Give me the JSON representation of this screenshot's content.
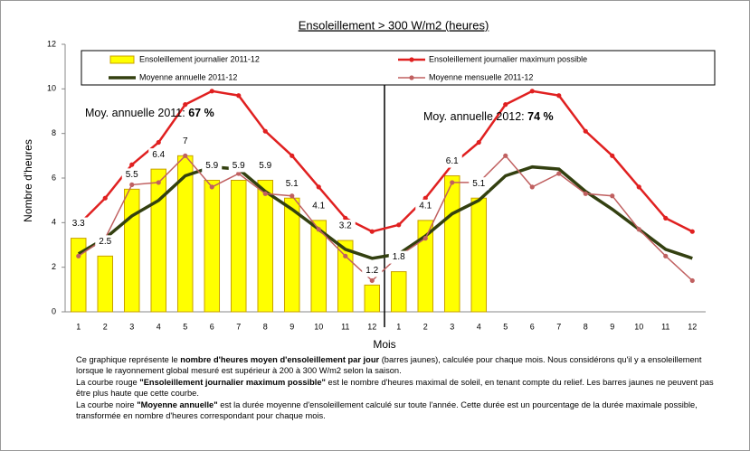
{
  "chart_data": {
    "type": "bar_line",
    "title": "Ensoleillement  > 300 W/m2 (heures)",
    "x_label": "Mois",
    "y_label": "Nombre d'heures",
    "categories": [
      "1",
      "2",
      "3",
      "4",
      "5",
      "6",
      "7",
      "8",
      "9",
      "10",
      "11",
      "12",
      "1",
      "2",
      "3",
      "4",
      "5",
      "6",
      "7",
      "8",
      "9",
      "10",
      "11",
      "12"
    ],
    "ylim": [
      0,
      12
    ],
    "yticks": [
      0,
      2,
      4,
      6,
      8,
      10,
      12
    ],
    "grid": false,
    "series": [
      {
        "name": "Ensoleillement journalier 2011-12",
        "kind": "bar",
        "color": "#ffff00",
        "edge": "#c8a000",
        "values": [
          3.3,
          2.5,
          5.5,
          6.4,
          7.0,
          5.9,
          5.9,
          5.9,
          5.1,
          4.1,
          3.2,
          1.2,
          1.8,
          4.1,
          6.1,
          5.1,
          null,
          null,
          null,
          null,
          null,
          null,
          null,
          null
        ]
      },
      {
        "name": "Ensoleillement journalier maximum possible",
        "kind": "line",
        "color": "#e02020",
        "width": 2.5,
        "markers": true,
        "values": [
          3.9,
          5.1,
          6.6,
          7.6,
          9.3,
          9.9,
          9.7,
          8.1,
          7.0,
          5.6,
          4.2,
          3.6,
          3.9,
          5.1,
          6.6,
          7.6,
          9.3,
          9.9,
          9.7,
          8.1,
          7.0,
          5.6,
          4.2,
          3.6
        ]
      },
      {
        "name": "Moyenne annuelle 2011-12",
        "kind": "line",
        "color": "#334010",
        "width": 3.5,
        "markers": false,
        "values": [
          2.6,
          3.3,
          4.3,
          5.0,
          6.1,
          6.5,
          6.4,
          5.4,
          4.6,
          3.7,
          2.8,
          2.4,
          2.6,
          3.4,
          4.4,
          5.0,
          6.1,
          6.5,
          6.4,
          5.4,
          4.6,
          3.7,
          2.8,
          2.4
        ]
      },
      {
        "name": "Moyenne mensuelle 2011-12",
        "kind": "line",
        "color": "#c06060",
        "width": 1.5,
        "markers": true,
        "values": [
          2.5,
          3.3,
          5.7,
          5.8,
          7.0,
          5.6,
          6.2,
          5.3,
          5.2,
          3.7,
          2.5,
          1.4,
          2.5,
          3.3,
          5.8,
          5.8,
          7.0,
          5.6,
          6.2,
          5.3,
          5.2,
          3.7,
          2.5,
          1.4
        ]
      }
    ],
    "annotations": [
      {
        "text": "Moy. annuelle 2011:",
        "value": "67 %"
      },
      {
        "text": "Moy. annuelle 2012:",
        "value": "74 %"
      }
    ],
    "caption": [
      [
        {
          "t": "Ce graphique représente le ",
          "b": false
        },
        {
          "t": "nombre d'heures moyen d'ensoleillement par jour",
          "b": true
        },
        {
          "t": " (barres jaunes), calculée pour chaque mois. Nous considérons qu'il y a ensoleillement lorsque le rayonnement global mesuré est supérieur à 200 à 300 W/m2 selon la saison.",
          "b": false
        }
      ],
      [
        {
          "t": "La courbe rouge ",
          "b": false
        },
        {
          "t": "\"Ensoleillement journalier  maximum possible\"",
          "b": true
        },
        {
          "t": " est le  nombre d'heures maximal de soleil, en tenant compte du relief. Les barres jaunes ne peuvent pas être plus haute que cette courbe.",
          "b": false
        }
      ],
      [
        {
          "t": "La courbe noire ",
          "b": false
        },
        {
          "t": "\"Moyenne annuelle\"",
          "b": true
        },
        {
          "t": "  est la durée moyenne d'ensoleillement calculé sur toute l'année. Cette durée est un pourcentage de la durée maximale possible, transformée en nombre d'heures correspondant pour chaque mois.",
          "b": false
        }
      ]
    ]
  }
}
